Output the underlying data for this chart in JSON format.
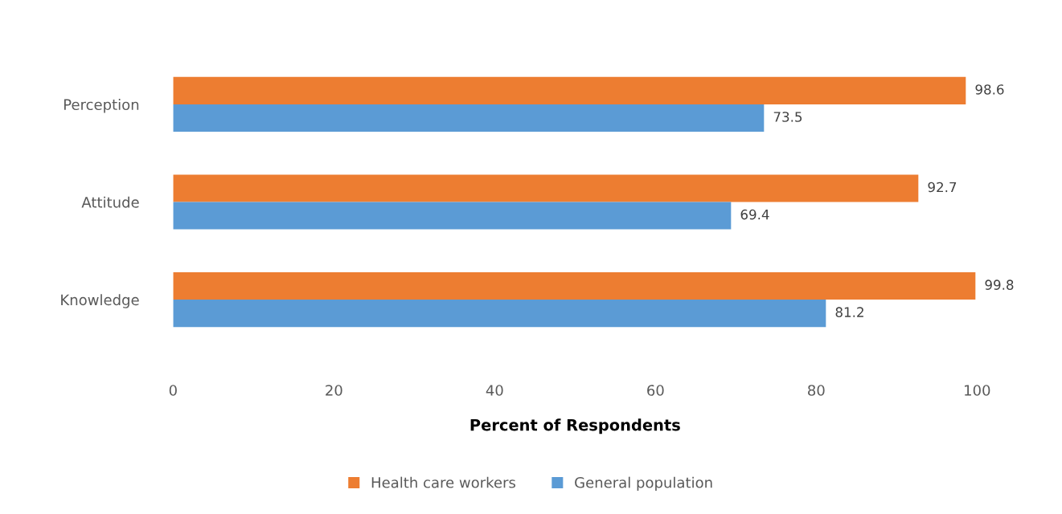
{
  "chart_data": {
    "type": "bar",
    "orientation": "horizontal",
    "xlabel": "Percent of Respondents",
    "categories": [
      "Perception",
      "Attitude",
      "Knowledge"
    ],
    "series": [
      {
        "name": "Health care workers",
        "color": "#ed7d31",
        "values": [
          98.6,
          92.7,
          99.8
        ]
      },
      {
        "name": "General population",
        "color": "#5b9bd5",
        "values": [
          73.5,
          69.4,
          81.2
        ]
      }
    ],
    "xlim": [
      0,
      100
    ],
    "xticks": [
      0,
      20,
      40,
      60,
      80,
      100
    ],
    "data_labels": true,
    "legend": "bottom",
    "grid": false
  }
}
